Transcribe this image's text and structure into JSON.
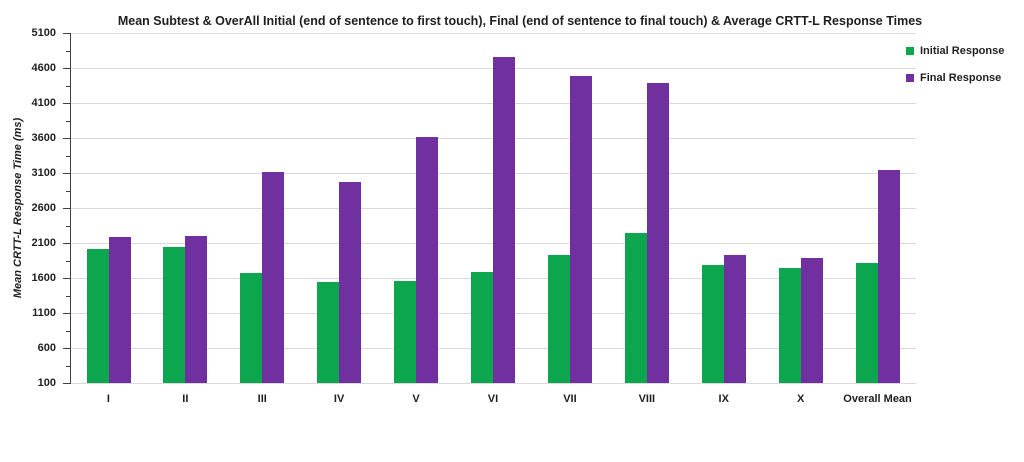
{
  "title": "Mean Subtest & OverAll Initial (end of sentence to first touch), Final (end of sentence to final touch) & Average CRTT-L Response Times",
  "y_axis_title": "Mean CRTT-L Response Time (ms)",
  "legend": {
    "items": [
      {
        "label": "Initial Response",
        "color": "#0CA64F"
      },
      {
        "label": "Final Response",
        "color": "#7030A0"
      }
    ]
  },
  "colors": {
    "initial_green": "#0CA64F",
    "final_purple": "#7030A0",
    "gridline": "#d9d9d9",
    "axis": "#404040",
    "text": "#1f1f1f"
  },
  "chart_data": {
    "type": "bar",
    "title": "Mean Subtest & OverAll Initial (end of sentence to first touch), Final (end of sentence to final touch) & Average CRTT-L Response Times",
    "xlabel": "",
    "ylabel": "Mean CRTT-L Response Time (ms)",
    "categories": [
      "I",
      "II",
      "III",
      "IV",
      "V",
      "VI",
      "VII",
      "VIII",
      "IX",
      "X",
      "Overall Mean"
    ],
    "series": [
      {
        "name": "Initial Response",
        "color": "#0CA64F",
        "values": [
          2010,
          2040,
          1670,
          1550,
          1560,
          1690,
          1930,
          2240,
          1780,
          1740,
          1820
        ]
      },
      {
        "name": "Final Response",
        "color": "#7030A0",
        "values": [
          2180,
          2200,
          3120,
          2970,
          3610,
          4760,
          4490,
          4390,
          1930,
          1890,
          3150
        ]
      }
    ],
    "ylim": [
      100,
      5100
    ],
    "ytick_step": 500,
    "yminor_step": 250,
    "ytick_labels": [
      "100",
      "600",
      "1100",
      "1600",
      "2100",
      "2600",
      "3100",
      "3600",
      "4100",
      "4600",
      "5100"
    ],
    "grid": true,
    "legend_position": "right"
  }
}
